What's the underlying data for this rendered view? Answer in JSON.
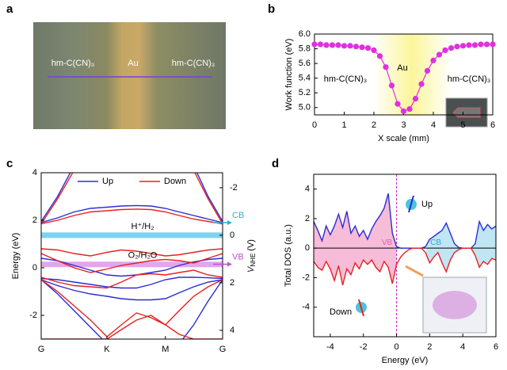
{
  "chart_data": [
    {
      "type": "image",
      "panel_label": "a",
      "labels": [
        "hm-C(CN)₃",
        "Au",
        "hm-C(CN)₃"
      ]
    },
    {
      "type": "line",
      "panel_label": "b",
      "xlabel": "X scale (mm)",
      "ylabel": "Work function (eV)",
      "labels": [
        "hm-C(CN)₃",
        "Au",
        "hm-C(CN)₃"
      ],
      "color": "#e030e0",
      "x": [
        0,
        0.2,
        0.4,
        0.6,
        0.8,
        1,
        1.2,
        1.4,
        1.6,
        1.8,
        2,
        2.2,
        2.4,
        2.6,
        2.8,
        3,
        3.2,
        3.4,
        3.6,
        3.8,
        4,
        4.2,
        4.4,
        4.6,
        4.8,
        5,
        5.2,
        5.4,
        5.6,
        5.8,
        6
      ],
      "values": [
        5.86,
        5.86,
        5.85,
        5.85,
        5.85,
        5.84,
        5.84,
        5.83,
        5.82,
        5.81,
        5.78,
        5.7,
        5.55,
        5.3,
        5.05,
        4.95,
        4.98,
        5.12,
        5.32,
        5.5,
        5.64,
        5.72,
        5.78,
        5.81,
        5.83,
        5.84,
        5.85,
        5.85,
        5.86,
        5.86,
        5.86
      ],
      "xlim": [
        0,
        6
      ],
      "ylim": [
        4.9,
        6.0
      ],
      "xticks": [
        0,
        1,
        2,
        3,
        4,
        5,
        6
      ],
      "yticks": [
        {
          "value": 5,
          "label": "5.0"
        },
        {
          "value": 5.2,
          "label": "5.2"
        },
        {
          "value": 5.4,
          "label": "5.4"
        },
        {
          "value": 5.6,
          "label": "5.6"
        },
        {
          "value": 5.8,
          "label": "5.8"
        },
        {
          "value": 6,
          "label": "6.0"
        }
      ]
    },
    {
      "type": "bands",
      "panel_label": "c",
      "ylabel": "Energy (eV)",
      "y2label": {
        "main": "V",
        "sub": "NHE",
        "unit": "(V)"
      },
      "x": [
        0,
        0.25,
        0.5,
        0.75,
        1,
        1.22,
        1.45,
        1.67,
        1.89,
        2.1,
        2.32,
        2.54,
        2.76
      ],
      "xlim": [
        0,
        2.76
      ],
      "ylim": [
        -3,
        4
      ],
      "y2lim": [
        4.37,
        -2.63
      ],
      "xticks": [
        {
          "value": 0,
          "label": "G"
        },
        {
          "value": 1,
          "label": "K"
        },
        {
          "value": 1.89,
          "label": "M"
        },
        {
          "value": 2.76,
          "label": "G"
        }
      ],
      "yticks": [
        -2,
        0,
        2,
        4
      ],
      "y2ticks": [
        -2,
        0,
        2,
        4
      ],
      "series": [
        {
          "name": "Up",
          "color": "#2b2bd6",
          "bands": [
            [
              1.9,
              2.1,
              2.35,
              2.5,
              2.55,
              2.6,
              2.62,
              2.6,
              2.5,
              2.35,
              2.2,
              2.05,
              1.9
            ],
            [
              1.95,
              3.0,
              4.3,
              null,
              null,
              null,
              null,
              null,
              null,
              null,
              4.3,
              3.0,
              1.95
            ],
            [
              0.4,
              0.3,
              0.1,
              -0.1,
              -0.3,
              -0.35,
              -0.3,
              -0.2,
              -0.1,
              0.1,
              0.25,
              0.35,
              0.4
            ],
            [
              -0.45,
              -0.5,
              -0.6,
              -0.7,
              -0.8,
              -0.85,
              -0.85,
              -0.7,
              -0.5,
              -0.4,
              -0.4,
              -0.42,
              -0.45
            ],
            [
              -0.5,
              -0.75,
              -0.95,
              -1.1,
              -1.2,
              -1.3,
              -1.35,
              -1.35,
              -1.3,
              -1.05,
              -0.8,
              -0.6,
              -0.5
            ],
            [
              -0.5,
              -1.1,
              -1.8,
              -2.5,
              -3.2,
              null,
              null,
              null,
              null,
              -3.2,
              -2.4,
              -1.4,
              -0.5
            ]
          ]
        },
        {
          "name": "Down",
          "color": "#e82020",
          "bands": [
            [
              1.85,
              2.0,
              2.2,
              2.35,
              2.4,
              2.45,
              2.47,
              2.45,
              2.35,
              2.2,
              2.05,
              1.95,
              1.85
            ],
            [
              1.85,
              2.9,
              4.1,
              null,
              null,
              null,
              null,
              null,
              null,
              null,
              4.1,
              2.9,
              1.85
            ],
            [
              0.8,
              0.75,
              0.6,
              0.5,
              0.65,
              0.75,
              0.7,
              0.6,
              0.5,
              0.55,
              0.65,
              0.75,
              0.8
            ],
            [
              0.6,
              0.3,
              0.0,
              -0.2,
              -0.05,
              0.1,
              0.2,
              0.3,
              0.35,
              0.3,
              0.2,
              0.4,
              0.6
            ],
            [
              -0.4,
              -0.6,
              -0.75,
              -0.8,
              -0.85,
              -0.6,
              -0.3,
              -0.25,
              -0.3,
              -0.2,
              -0.1,
              -0.3,
              -0.4
            ],
            [
              -0.5,
              -1.0,
              -1.6,
              -2.2,
              -2.9,
              -2.4,
              -1.9,
              -2.1,
              -2.4,
              -1.8,
              -1.2,
              -0.8,
              -0.5
            ],
            [
              -3.0,
              -3.0,
              -3.0,
              -3.0,
              -3.0,
              -2.6,
              -2.2,
              -2.0,
              -2.4,
              -2.8,
              -3.0,
              -3.0,
              -3.0
            ]
          ]
        }
      ],
      "levels": [
        {
          "label": "H⁺/H₂",
          "value": 0,
          "color": "#5cc8ec"
        },
        {
          "label": "O₂/H₂O",
          "value": 1.23,
          "color": "#dc90ec"
        }
      ],
      "band_edges": [
        {
          "label": "CB",
          "value": 1.9,
          "color": "#2ab0d8"
        },
        {
          "label": "VB",
          "value": 0.15,
          "color": "#c050d0"
        }
      ]
    },
    {
      "type": "area",
      "panel_label": "d",
      "xlabel": "Energy (eV)",
      "ylabel": "Total DOS (a.u.)",
      "xlim": [
        -5,
        6
      ],
      "ylim": [
        -6,
        5
      ],
      "xticks": [
        -4,
        -2,
        0,
        2,
        4,
        6
      ],
      "yticks": [
        -4,
        -2,
        0,
        2,
        4
      ],
      "vline": 0,
      "x": [
        -5,
        -4.75,
        -4.5,
        -4.25,
        -4,
        -3.75,
        -3.5,
        -3.25,
        -3,
        -2.75,
        -2.5,
        -2.25,
        -2,
        -1.75,
        -1.5,
        -1.25,
        -1,
        -0.75,
        -0.5,
        -0.25,
        0,
        0.25,
        0.5,
        0.75,
        1,
        1.25,
        1.5,
        1.75,
        2,
        2.25,
        2.5,
        2.75,
        3,
        3.25,
        3.5,
        3.75,
        4,
        4.25,
        4.5,
        4.75,
        5,
        5.25,
        5.5,
        5.75,
        6
      ],
      "series": [
        {
          "name": "Up",
          "color": "#2b2bd6",
          "values": [
            1.8,
            1.2,
            0.5,
            1.5,
            0.9,
            1.5,
            2.3,
            1.4,
            2.5,
            1.0,
            1.5,
            0.8,
            1.2,
            0.6,
            1.3,
            1.8,
            2.2,
            2.7,
            3.7,
            1.0,
            0.1,
            0,
            0,
            0,
            0,
            0,
            0,
            0.1,
            0.6,
            0.8,
            1.0,
            1.2,
            1.7,
            1.0,
            0.3,
            0.05,
            0,
            0,
            0,
            0.3,
            1.8,
            1.2,
            1.6,
            1.3,
            1.5
          ]
        },
        {
          "name": "Down",
          "color": "#e82020",
          "values": [
            -0.9,
            -1.3,
            -1.5,
            -0.9,
            -1.4,
            -2.2,
            -1.2,
            -2.5,
            -1.4,
            -1.8,
            -1.0,
            -1.4,
            -0.8,
            -1.1,
            -0.8,
            -1.3,
            -1.6,
            -0.9,
            -1.3,
            -2.4,
            -1.1,
            -0.6,
            -0.3,
            -0.1,
            0,
            0,
            0,
            -0.3,
            -1.0,
            -0.6,
            -0.3,
            -1.0,
            -1.6,
            -0.8,
            -0.3,
            -0.1,
            0,
            0,
            0,
            -0.5,
            -1.3,
            -0.9,
            -1.1,
            -0.7,
            -0.8
          ]
        }
      ],
      "shaded_regions": [
        {
          "label": "VB",
          "xlim": [
            -5,
            0
          ],
          "color": "#f6bcd8",
          "text_color": "#e060b0"
        },
        {
          "label": "CB",
          "xlim": [
            1.8,
            6
          ],
          "color": "#bfe6f2",
          "text_color": "#30a8d8"
        }
      ]
    }
  ]
}
